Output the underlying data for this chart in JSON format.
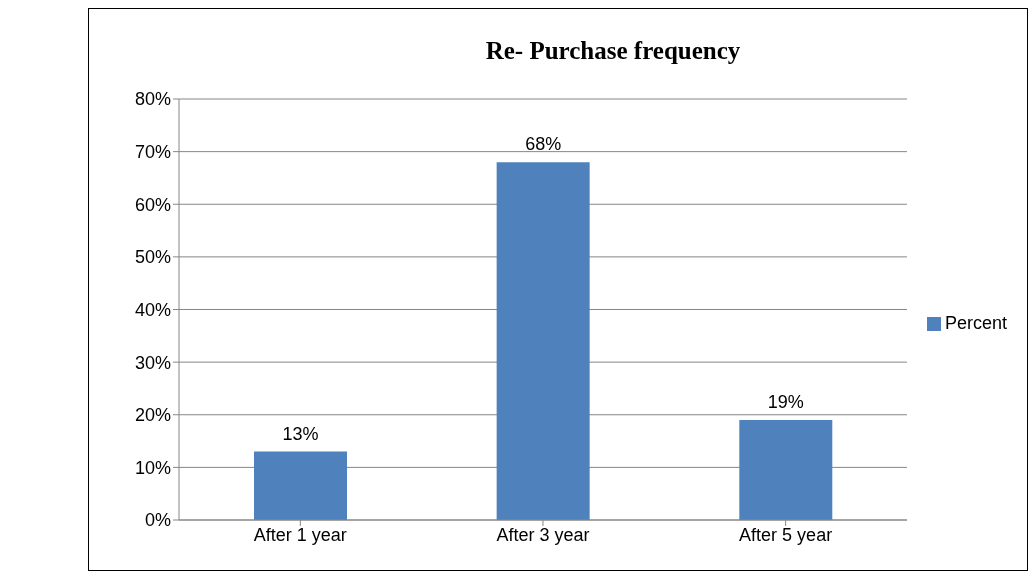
{
  "chart_data": {
    "type": "bar",
    "title": "Re- Purchase frequency",
    "categories": [
      "After 1 year",
      "After 3 year",
      "After 5 year"
    ],
    "series": [
      {
        "name": "Percent",
        "color": "#4f81bd",
        "values": [
          13,
          68,
          19
        ]
      }
    ],
    "value_labels": [
      "13%",
      "68%",
      "19%"
    ],
    "ylim": [
      0,
      80
    ],
    "yticks": [
      {
        "value": 0,
        "label": "0%"
      },
      {
        "value": 10,
        "label": "10%"
      },
      {
        "value": 20,
        "label": "20%"
      },
      {
        "value": 30,
        "label": "30%"
      },
      {
        "value": 40,
        "label": "40%"
      },
      {
        "value": 50,
        "label": "50%"
      },
      {
        "value": 60,
        "label": "60%"
      },
      {
        "value": 70,
        "label": "70%"
      },
      {
        "value": 80,
        "label": "80%"
      }
    ],
    "grid": "y",
    "legend": "right"
  }
}
